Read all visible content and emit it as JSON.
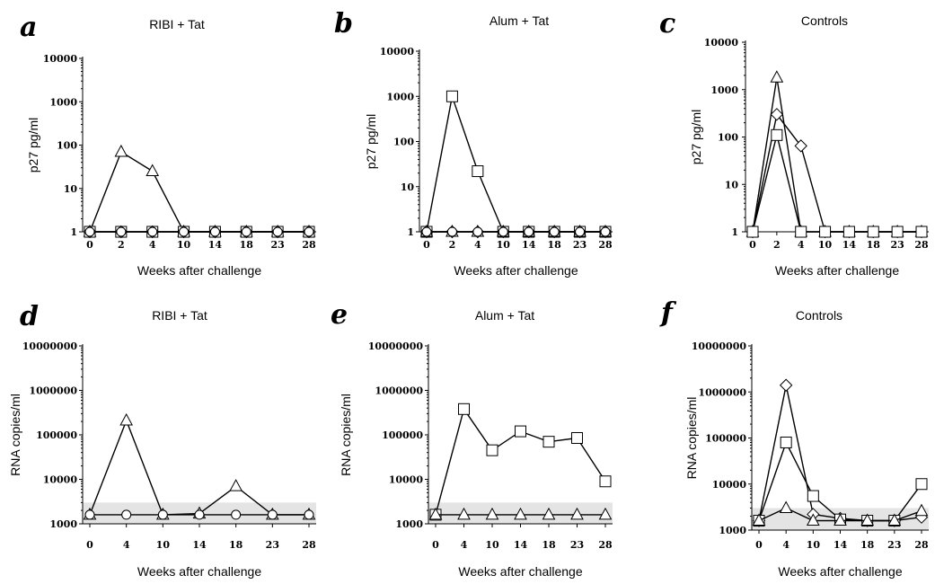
{
  "chart_data": [
    {
      "panel": "a",
      "type": "line",
      "title": "RIBI + Tat",
      "xlabel": "Weeks after challenge",
      "ylabel": "p27 pg/ml",
      "yscale": "log",
      "ylim": [
        1,
        10000
      ],
      "yticks": [
        "1",
        "10",
        "100",
        "1000",
        "10000"
      ],
      "categories": [
        "0",
        "2",
        "4",
        "10",
        "14",
        "18",
        "23",
        "28"
      ],
      "series": [
        {
          "marker": "triangle",
          "values": [
            1,
            70,
            25,
            1,
            1,
            1,
            1,
            1
          ]
        },
        {
          "marker": "square",
          "values": [
            1,
            1,
            1,
            1,
            1,
            1,
            1,
            1
          ]
        },
        {
          "marker": "diamond",
          "values": [
            1,
            1,
            1,
            1,
            1,
            1,
            1,
            1
          ]
        },
        {
          "marker": "circle",
          "values": [
            1,
            1,
            1,
            1,
            1,
            1,
            1,
            1
          ]
        }
      ]
    },
    {
      "panel": "b",
      "type": "line",
      "title": "Alum + Tat",
      "xlabel": "Weeks after challenge",
      "ylabel": "p27 pg/ml",
      "yscale": "log",
      "ylim": [
        1,
        10000
      ],
      "yticks": [
        "1",
        "10",
        "100",
        "1000",
        "10000"
      ],
      "categories": [
        "0",
        "2",
        "4",
        "10",
        "14",
        "18",
        "23",
        "28"
      ],
      "series": [
        {
          "marker": "square",
          "values": [
            1,
            1000,
            22,
            1,
            1,
            1,
            1,
            1
          ]
        },
        {
          "marker": "triangle",
          "values": [
            1,
            1,
            1,
            1,
            1,
            1,
            1,
            1
          ]
        },
        {
          "marker": "diamond",
          "values": [
            1,
            1,
            1,
            1,
            1,
            1,
            1,
            1
          ]
        },
        {
          "marker": "circle",
          "values": [
            1,
            1,
            1,
            1,
            1,
            1,
            1,
            1
          ]
        }
      ]
    },
    {
      "panel": "c",
      "type": "line",
      "title": "Controls",
      "xlabel": "Weeks after challenge",
      "ylabel": "p27 pg/ml",
      "yscale": "log",
      "ylim": [
        1,
        10000
      ],
      "yticks": [
        "1",
        "10",
        "100",
        "1000",
        "10000"
      ],
      "categories": [
        "0",
        "2",
        "4",
        "10",
        "14",
        "18",
        "23",
        "28"
      ],
      "series": [
        {
          "marker": "triangle",
          "values": [
            1,
            1800,
            1,
            1,
            1,
            1,
            1,
            1
          ]
        },
        {
          "marker": "diamond",
          "values": [
            1,
            300,
            65,
            1,
            1,
            1,
            1,
            1
          ]
        },
        {
          "marker": "square",
          "values": [
            1,
            110,
            1,
            1,
            1,
            1,
            1,
            1
          ]
        }
      ]
    },
    {
      "panel": "d",
      "type": "line",
      "title": "RIBI + Tat",
      "xlabel": "Weeks after challenge",
      "ylabel": "RNA copies/ml",
      "yscale": "log",
      "ylim": [
        1000,
        10000000
      ],
      "yticks": [
        "1000",
        "10000",
        "100000",
        "1000000",
        "10000000"
      ],
      "detection_band": [
        1000,
        3000
      ],
      "categories": [
        "0",
        "4",
        "10",
        "14",
        "18",
        "23",
        "28"
      ],
      "series": [
        {
          "marker": "triangle",
          "values": [
            1600,
            210000,
            1600,
            1700,
            7000,
            1600,
            1600
          ]
        },
        {
          "marker": "circle",
          "values": [
            1600,
            1600,
            1600,
            1600,
            1600,
            1600,
            1600
          ]
        }
      ]
    },
    {
      "panel": "e",
      "type": "line",
      "title": "Alum + Tat",
      "xlabel": "Weeks after challenge",
      "ylabel": "RNA copies/ml",
      "yscale": "log",
      "ylim": [
        1000,
        10000000
      ],
      "yticks": [
        "1000",
        "10000",
        "100000",
        "1000000",
        "10000000"
      ],
      "detection_band": [
        1000,
        3000
      ],
      "categories": [
        "0",
        "4",
        "10",
        "14",
        "18",
        "23",
        "28"
      ],
      "series": [
        {
          "marker": "square",
          "values": [
            1600,
            380000,
            45000,
            120000,
            70000,
            85000,
            9000
          ]
        },
        {
          "marker": "triangle",
          "values": [
            1600,
            1600,
            1600,
            1600,
            1600,
            1600,
            1600
          ]
        }
      ]
    },
    {
      "panel": "f",
      "type": "line",
      "title": "Controls",
      "xlabel": "Weeks after challenge",
      "ylabel": "RNA copies/ml",
      "yscale": "log",
      "ylim": [
        1000,
        10000000
      ],
      "yticks": [
        "1000",
        "10000",
        "100000",
        "1000000",
        "10000000"
      ],
      "detection_band": [
        1000,
        3000
      ],
      "categories": [
        "0",
        "4",
        "10",
        "14",
        "18",
        "23",
        "28"
      ],
      "series": [
        {
          "marker": "diamond",
          "values": [
            1600,
            1400000,
            2200,
            1800,
            1600,
            1600,
            1900
          ]
        },
        {
          "marker": "square",
          "values": [
            1600,
            80000,
            5500,
            1700,
            1600,
            1600,
            10000
          ]
        },
        {
          "marker": "triangle",
          "values": [
            1600,
            3000,
            1600,
            1600,
            1600,
            1600,
            2600
          ]
        }
      ]
    }
  ]
}
